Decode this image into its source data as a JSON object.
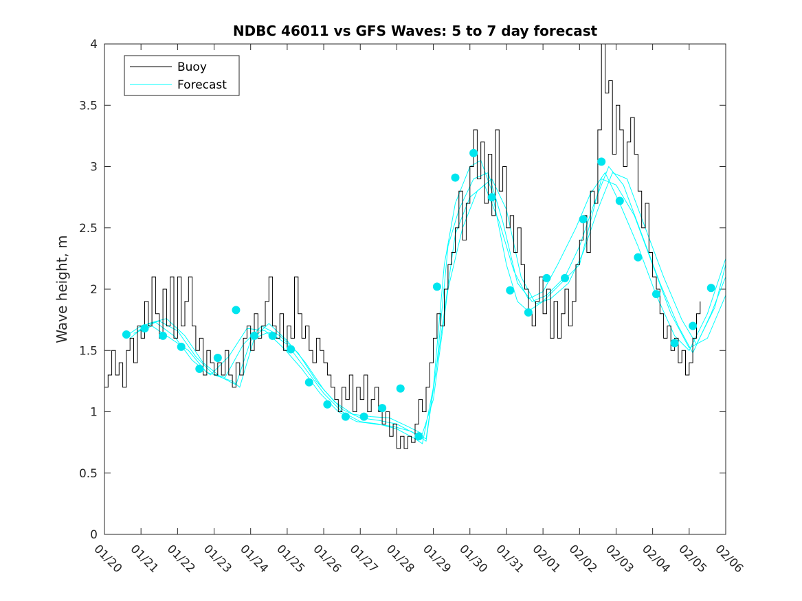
{
  "chart_data": {
    "type": "line",
    "title": "NDBC 46011 vs GFS Waves: 5 to 7 day forecast",
    "xlabel": "",
    "ylabel": "Wave height, m",
    "xlim": [
      0,
      17
    ],
    "ylim": [
      0,
      4
    ],
    "x_tick_labels": [
      "01/20",
      "01/21",
      "01/22",
      "01/23",
      "01/24",
      "01/25",
      "01/26",
      "01/27",
      "01/28",
      "01/29",
      "01/30",
      "01/31",
      "02/01",
      "02/02",
      "02/03",
      "02/04",
      "02/05",
      "02/06"
    ],
    "y_ticks": [
      0,
      0.5,
      1,
      1.5,
      2,
      2.5,
      3,
      3.5,
      4
    ],
    "y_tick_labels": [
      "0",
      "0.5",
      "1",
      "1.5",
      "2",
      "2.5",
      "3",
      "3.5",
      "4"
    ],
    "legend": {
      "position": "top-left",
      "entries": [
        "Buoy",
        "Forecast"
      ]
    },
    "colors": {
      "buoy": "#000000",
      "forecast": "#00ffff",
      "forecast_marker": "#00e5ee"
    },
    "series": [
      {
        "name": "Buoy",
        "x": [
          0,
          0.1,
          0.2,
          0.3,
          0.4,
          0.5,
          0.6,
          0.7,
          0.8,
          0.9,
          1.0,
          1.1,
          1.2,
          1.3,
          1.4,
          1.5,
          1.6,
          1.7,
          1.8,
          1.9,
          2.0,
          2.1,
          2.2,
          2.3,
          2.4,
          2.5,
          2.6,
          2.7,
          2.8,
          2.9,
          3.0,
          3.1,
          3.2,
          3.3,
          3.4,
          3.5,
          3.6,
          3.7,
          3.8,
          3.9,
          4.0,
          4.1,
          4.2,
          4.3,
          4.4,
          4.5,
          4.6,
          4.7,
          4.8,
          4.9,
          5.0,
          5.1,
          5.2,
          5.3,
          5.4,
          5.5,
          5.6,
          5.7,
          5.8,
          5.9,
          6.0,
          6.1,
          6.2,
          6.3,
          6.4,
          6.5,
          6.6,
          6.7,
          6.8,
          6.9,
          7.0,
          7.1,
          7.2,
          7.3,
          7.4,
          7.5,
          7.6,
          7.7,
          7.8,
          7.9,
          8.0,
          8.1,
          8.2,
          8.3,
          8.4,
          8.5,
          8.6,
          8.7,
          8.8,
          8.9,
          9.0,
          9.1,
          9.2,
          9.3,
          9.4,
          9.5,
          9.6,
          9.7,
          9.8,
          9.9,
          10.0,
          10.1,
          10.2,
          10.3,
          10.4,
          10.5,
          10.6,
          10.7,
          10.8,
          10.9,
          11.0,
          11.1,
          11.2,
          11.3,
          11.4,
          11.5,
          11.6,
          11.7,
          11.8,
          11.9,
          12.0,
          12.1,
          12.2,
          12.3,
          12.4,
          12.5,
          12.6,
          12.7,
          12.8,
          12.9,
          13.0,
          13.1,
          13.2,
          13.3,
          13.4,
          13.5,
          13.6,
          13.7,
          13.8,
          13.9,
          14.0,
          14.1,
          14.2,
          14.3,
          14.4,
          14.5,
          14.6,
          14.7,
          14.8,
          14.9,
          15.0,
          15.1,
          15.2,
          15.3,
          15.4,
          15.5,
          15.6,
          15.7,
          15.8,
          15.9,
          16.0,
          16.1,
          16.2,
          16.3
        ],
        "values": [
          1.2,
          1.3,
          1.5,
          1.3,
          1.4,
          1.2,
          1.5,
          1.6,
          1.4,
          1.7,
          1.6,
          1.9,
          1.7,
          2.1,
          1.8,
          1.6,
          2.0,
          1.7,
          2.1,
          1.6,
          2.1,
          1.7,
          1.9,
          2.1,
          1.7,
          1.5,
          1.6,
          1.3,
          1.5,
          1.4,
          1.3,
          1.4,
          1.3,
          1.5,
          1.3,
          1.2,
          1.4,
          1.3,
          1.6,
          1.7,
          1.5,
          1.8,
          1.6,
          1.7,
          1.9,
          2.1,
          1.7,
          1.6,
          1.8,
          1.5,
          1.7,
          1.6,
          2.1,
          1.8,
          1.6,
          1.7,
          1.5,
          1.4,
          1.6,
          1.5,
          1.4,
          1.3,
          1.2,
          1.1,
          1.0,
          1.2,
          1.1,
          1.3,
          1.0,
          1.2,
          1.1,
          1.3,
          1.0,
          1.1,
          1.2,
          1.0,
          0.9,
          1.0,
          0.8,
          0.9,
          0.7,
          0.8,
          0.7,
          0.8,
          0.75,
          0.9,
          1.1,
          1.0,
          1.2,
          1.4,
          1.6,
          1.8,
          1.7,
          2.0,
          2.2,
          2.3,
          2.5,
          2.8,
          2.4,
          2.7,
          3.0,
          3.3,
          2.9,
          3.2,
          2.7,
          3.1,
          2.6,
          3.3,
          2.8,
          3.0,
          2.5,
          2.6,
          2.3,
          2.5,
          2.2,
          2.0,
          1.8,
          1.7,
          1.9,
          2.1,
          1.8,
          2.0,
          1.6,
          1.9,
          1.6,
          1.8,
          2.0,
          1.7,
          1.9,
          2.2,
          2.4,
          2.6,
          2.3,
          2.8,
          2.7,
          3.3,
          4.0,
          3.6,
          3.7,
          3.1,
          3.5,
          3.3,
          3.0,
          3.2,
          3.4,
          3.1,
          2.8,
          2.5,
          2.7,
          2.3,
          2.1,
          2.0,
          1.8,
          1.6,
          1.7,
          1.5,
          1.6,
          1.4,
          1.5,
          1.3,
          1.4,
          1.6,
          1.8,
          1.9
        ]
      },
      {
        "name": "Forecast",
        "runs": [
          {
            "x": [
              0.6,
              1.0,
              1.5,
              2.0,
              2.5,
              3.0,
              3.5,
              3.7,
              4.1,
              4.5,
              5.0,
              5.5,
              6.0,
              6.5,
              7.0,
              7.5,
              8.0,
              8.5,
              8.7,
              9.0,
              9.3,
              9.6,
              10.0,
              10.3,
              10.6,
              11.0,
              11.3,
              11.6,
              12.0,
              12.5,
              13.0,
              13.3,
              13.6,
              14.0,
              14.5,
              15.0,
              15.5,
              16.0,
              16.5,
              17.0
            ],
            "values": [
              1.62,
              1.7,
              1.74,
              1.66,
              1.45,
              1.3,
              1.25,
              1.2,
              1.6,
              1.65,
              1.55,
              1.35,
              1.15,
              1.0,
              0.92,
              0.9,
              0.86,
              0.78,
              0.74,
              1.2,
              2.2,
              2.7,
              3.0,
              3.05,
              2.8,
              2.2,
              1.9,
              1.82,
              1.9,
              2.05,
              2.2,
              2.55,
              2.9,
              2.85,
              2.6,
              2.2,
              1.8,
              1.52,
              1.6,
              1.95
            ]
          },
          {
            "x": [
              0.7,
              1.2,
              1.7,
              2.2,
              2.7,
              3.2,
              3.6,
              4.0,
              4.5,
              5.0,
              5.5,
              6.0,
              6.5,
              7.0,
              7.5,
              8.0,
              8.5,
              8.8,
              9.1,
              9.4,
              9.7,
              10.1,
              10.5,
              10.9,
              11.3,
              11.7,
              12.1,
              12.6,
              13.0,
              13.4,
              13.8,
              14.2,
              14.7,
              15.2,
              15.7,
              16.1,
              16.6,
              17.0
            ],
            "values": [
              1.6,
              1.72,
              1.76,
              1.62,
              1.4,
              1.28,
              1.22,
              1.58,
              1.72,
              1.58,
              1.4,
              1.18,
              1.02,
              0.95,
              0.93,
              0.9,
              0.82,
              0.78,
              1.4,
              2.35,
              2.65,
              2.9,
              2.95,
              2.55,
              2.05,
              1.9,
              1.95,
              2.1,
              2.35,
              2.7,
              3.0,
              2.85,
              2.45,
              2.05,
              1.7,
              1.48,
              1.8,
              2.1
            ]
          },
          {
            "x": [
              0.8,
              1.3,
              1.8,
              2.3,
              2.8,
              3.3,
              3.8,
              4.3,
              4.8,
              5.3,
              5.8,
              6.3,
              6.8,
              7.3,
              7.8,
              8.3,
              8.7,
              9.0,
              9.4,
              9.8,
              10.2,
              10.6,
              11.0,
              11.4,
              11.8,
              12.2,
              12.7,
              13.1,
              13.5,
              13.9,
              14.3,
              14.8,
              15.3,
              15.8,
              16.2,
              16.7,
              17.0
            ],
            "values": [
              1.64,
              1.7,
              1.6,
              1.5,
              1.32,
              1.28,
              1.55,
              1.7,
              1.62,
              1.48,
              1.25,
              1.08,
              0.98,
              0.96,
              0.95,
              0.88,
              0.82,
              1.1,
              2.0,
              2.5,
              2.8,
              2.9,
              2.65,
              2.1,
              1.88,
              1.92,
              2.05,
              2.3,
              2.65,
              2.95,
              2.9,
              2.5,
              2.1,
              1.75,
              1.55,
              1.85,
              2.2
            ]
          },
          {
            "x": [
              0.9,
              1.4,
              1.9,
              2.4,
              2.9,
              3.4,
              3.9,
              4.4,
              4.9,
              5.4,
              5.9,
              6.4,
              6.9,
              7.4,
              7.9,
              8.4,
              8.8,
              9.2,
              9.6,
              10.0,
              10.4,
              10.8,
              11.2,
              11.6,
              12.0,
              12.4,
              12.9,
              13.3,
              13.7,
              14.1,
              14.6,
              15.1,
              15.6,
              16.0,
              16.5,
              17.0
            ],
            "values": [
              1.66,
              1.73,
              1.62,
              1.42,
              1.3,
              1.45,
              1.68,
              1.66,
              1.52,
              1.35,
              1.15,
              1.0,
              0.92,
              0.9,
              0.88,
              0.84,
              0.76,
              1.6,
              2.45,
              2.75,
              2.85,
              2.55,
              2.15,
              1.92,
              1.98,
              2.2,
              2.5,
              2.78,
              2.95,
              2.7,
              2.35,
              1.95,
              1.62,
              1.5,
              1.8,
              2.25
            ]
          }
        ],
        "markers": {
          "x": [
            0.6,
            1.1,
            1.6,
            2.1,
            2.6,
            3.1,
            3.6,
            4.1,
            4.6,
            5.1,
            5.6,
            6.1,
            6.6,
            7.1,
            7.6,
            8.1,
            8.6,
            9.1,
            9.6,
            10.1,
            10.6,
            11.1,
            11.6,
            12.1,
            12.6,
            13.1,
            13.6,
            14.1,
            14.6,
            15.1,
            15.6,
            16.1,
            16.6
          ],
          "values": [
            1.63,
            1.68,
            1.62,
            1.53,
            1.35,
            1.44,
            1.83,
            1.62,
            1.62,
            1.51,
            1.24,
            1.06,
            0.96,
            0.96,
            1.03,
            1.19,
            0.8,
            2.02,
            2.91,
            3.11,
            2.75,
            1.99,
            1.81,
            2.09,
            2.09,
            2.57,
            3.04,
            2.72,
            2.26,
            1.96,
            1.56,
            1.7,
            2.01
          ]
        }
      }
    ]
  }
}
